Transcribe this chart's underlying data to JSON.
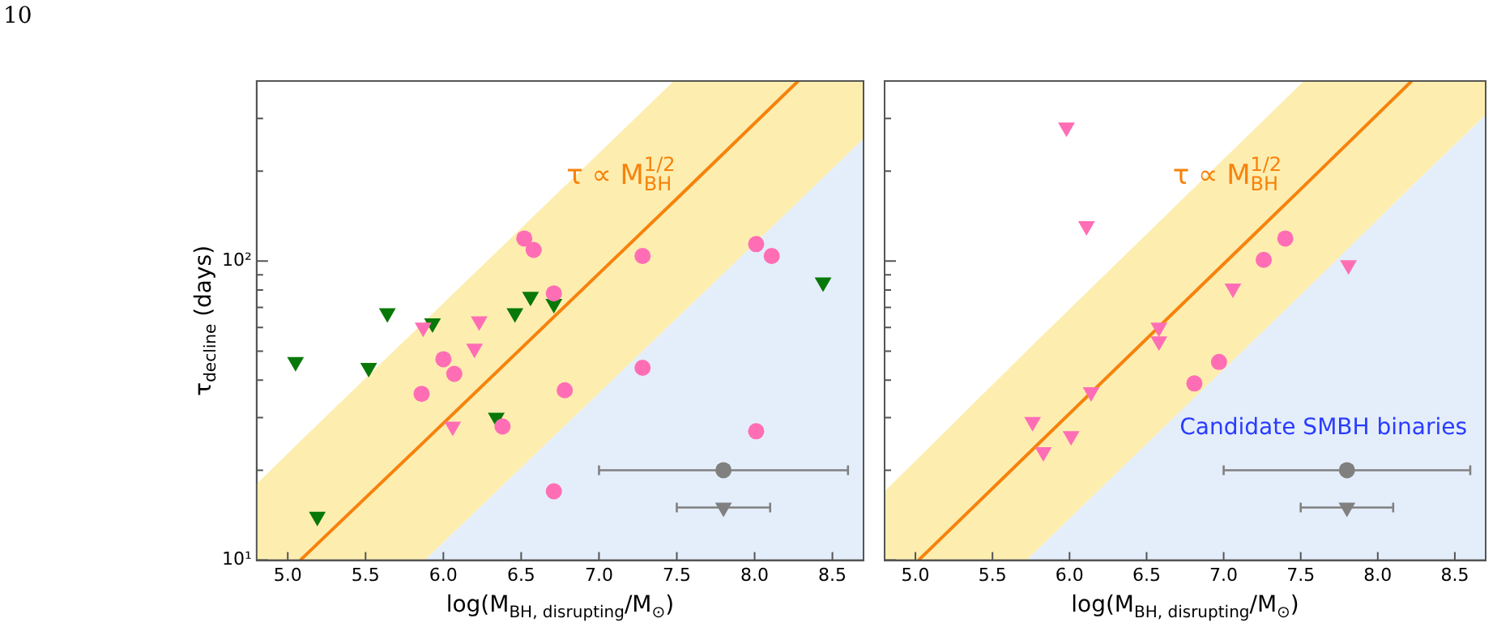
{
  "chart_data": [
    {
      "type": "scatter",
      "xlabel": "log(M$_{BH, disrupting}$/M$_{⊙}$)",
      "ylabel": "τ$_{decline}$ (days)",
      "xlim": [
        4.8,
        8.7
      ],
      "ylim": [
        10,
        400
      ],
      "log": "y",
      "grid": false,
      "legend": false,
      "xticks": [
        {
          "value": 5,
          "label": "5.0"
        },
        5.5,
        {
          "value": 6,
          "label": "6.0"
        },
        6.5,
        {
          "value": 7,
          "label": "7.0"
        },
        7.5,
        {
          "value": 8,
          "label": "8.0"
        },
        8.5
      ],
      "yticks": [
        {
          "value": 10,
          "label": "10¹"
        },
        {
          "value": 20,
          "label": null
        },
        {
          "value": 30,
          "label": null
        },
        {
          "value": 40,
          "label": null
        },
        {
          "value": 50,
          "label": null
        },
        {
          "value": 60,
          "label": null
        },
        {
          "value": 70,
          "label": null
        },
        {
          "value": 80,
          "label": null
        },
        {
          "value": 90,
          "label": null
        },
        {
          "value": 100,
          "label": "10²"
        },
        {
          "value": 200,
          "label": null
        },
        {
          "value": 300,
          "label": null
        },
        {
          "value": 400,
          "label": null
        }
      ],
      "annotations": [
        "τ ∝ M$_{BH}$$^{1/2}$",
        "10"
      ],
      "series": [
        {
          "type": "area",
          "color": "#e4eefb",
          "x": [
            5.88,
            8.7
          ],
          "values": [
            10,
            257
          ]
        },
        {
          "type": "line",
          "color": "#f7820c",
          "marker": "none",
          "line_style": "solid",
          "x": [
            4.8,
            5.08,
            5.88,
            7.48,
            8.28,
            8.7
          ],
          "values": [
            null,
            10,
            25,
            158,
            400,
            null
          ],
          "lower": [
            10,
            10,
            10,
            63,
            158,
            257
          ],
          "upper": [
            18,
            25,
            63,
            400,
            400,
            400
          ]
        },
        {
          "type": "scatter",
          "color": "#ff6eb4",
          "marker": "circle",
          "x": [
            6.52,
            6.58,
            6.71,
            7.28,
            8.01,
            8.11,
            6.0,
            6.07,
            5.86,
            6.78,
            7.28,
            6.38,
            8.01,
            6.71
          ],
          "values": [
            119,
            109,
            78,
            104,
            114,
            104,
            47,
            42,
            36,
            37,
            44,
            28,
            27,
            17
          ]
        },
        {
          "type": "scatter",
          "color": "#ff6eb4",
          "marker": "triangle",
          "x": [
            5.87,
            6.23,
            6.2,
            6.06
          ],
          "values": [
            60,
            63,
            51,
            28
          ]
        },
        {
          "type": "scatter",
          "color": "#087808",
          "marker": "triangle",
          "x": [
            5.05,
            5.52,
            5.64,
            5.93,
            6.46,
            6.56,
            6.71,
            6.34,
            5.19,
            8.44
          ],
          "values": [
            46,
            44,
            67,
            62,
            67,
            76,
            72,
            30,
            14,
            85
          ]
        },
        {
          "type": "scatter",
          "color": "#808080",
          "marker": "circle",
          "x": [
            7.8
          ],
          "values": [
            20
          ],
          "xerrors": [
            0.8
          ]
        },
        {
          "type": "scatter",
          "color": "#808080",
          "marker": "triangle",
          "x": [
            7.8
          ],
          "values": [
            15
          ],
          "xerrors": [
            0.3
          ]
        }
      ]
    },
    {
      "type": "scatter",
      "xlabel": "log(M$_{BH, disrupting}$/M$_{⊙}$)",
      "xlim": [
        4.8,
        8.7
      ],
      "ylim": [
        10,
        400
      ],
      "log": "y",
      "grid": false,
      "legend": false,
      "tick_labels": "x",
      "xticks": [
        {
          "value": 5,
          "label": "5.0"
        },
        5.5,
        {
          "value": 6,
          "label": "6.0"
        },
        6.5,
        {
          "value": 7,
          "label": "7.0"
        },
        7.5,
        {
          "value": 8,
          "label": "8.0"
        },
        8.5
      ],
      "yticks": [
        {
          "value": 10,
          "label": null
        },
        {
          "value": 20,
          "label": null
        },
        {
          "value": 30,
          "label": null
        },
        {
          "value": 40,
          "label": null
        },
        {
          "value": 50,
          "label": null
        },
        {
          "value": 60,
          "label": null
        },
        {
          "value": 70,
          "label": null
        },
        {
          "value": 80,
          "label": null
        },
        {
          "value": 90,
          "label": null
        },
        {
          "value": 100,
          "label": null
        },
        {
          "value": 200,
          "label": null
        },
        {
          "value": 300,
          "label": null
        },
        {
          "value": 400,
          "label": null
        }
      ],
      "annotations": [
        "τ ∝ M$_{BH}$$^{1/2}$",
        "Candidate SMBH binaries"
      ],
      "series": [
        {
          "type": "area",
          "color": "#e4eefb",
          "x": [
            5.72,
            8.7
          ],
          "values": [
            10,
            309
          ]
        },
        {
          "type": "line",
          "color": "#f7820c",
          "marker": "none",
          "line_style": "solid",
          "x": [
            4.8,
            5.02,
            5.72,
            7.52,
            8.22,
            8.7
          ],
          "values": [
            null,
            10,
            22.4,
            178,
            400,
            null
          ],
          "lower": [
            10,
            10,
            10,
            79,
            178,
            309
          ],
          "upper": [
            17,
            22,
            50,
            400,
            400,
            400
          ]
        },
        {
          "type": "scatter",
          "color": "#ff6eb4",
          "marker": "circle",
          "x": [
            7.4,
            7.26,
            6.97,
            6.81
          ],
          "values": [
            119,
            101,
            46,
            39
          ]
        },
        {
          "type": "scatter",
          "color": "#ff6eb4",
          "marker": "triangle",
          "x": [
            5.98,
            6.11,
            7.81,
            7.06,
            6.58,
            6.58,
            6.14,
            5.76,
            6.01,
            5.83
          ],
          "values": [
            280,
            131,
            97,
            81,
            60,
            54,
            36.5,
            29,
            26,
            23
          ]
        },
        {
          "type": "scatter",
          "color": "#808080",
          "marker": "circle",
          "x": [
            7.8
          ],
          "values": [
            20
          ],
          "xerrors": [
            0.8
          ]
        },
        {
          "type": "scatter",
          "color": "#808080",
          "marker": "triangle",
          "x": [
            7.8
          ],
          "values": [
            15
          ],
          "xerrors": [
            0.3
          ]
        }
      ]
    }
  ]
}
